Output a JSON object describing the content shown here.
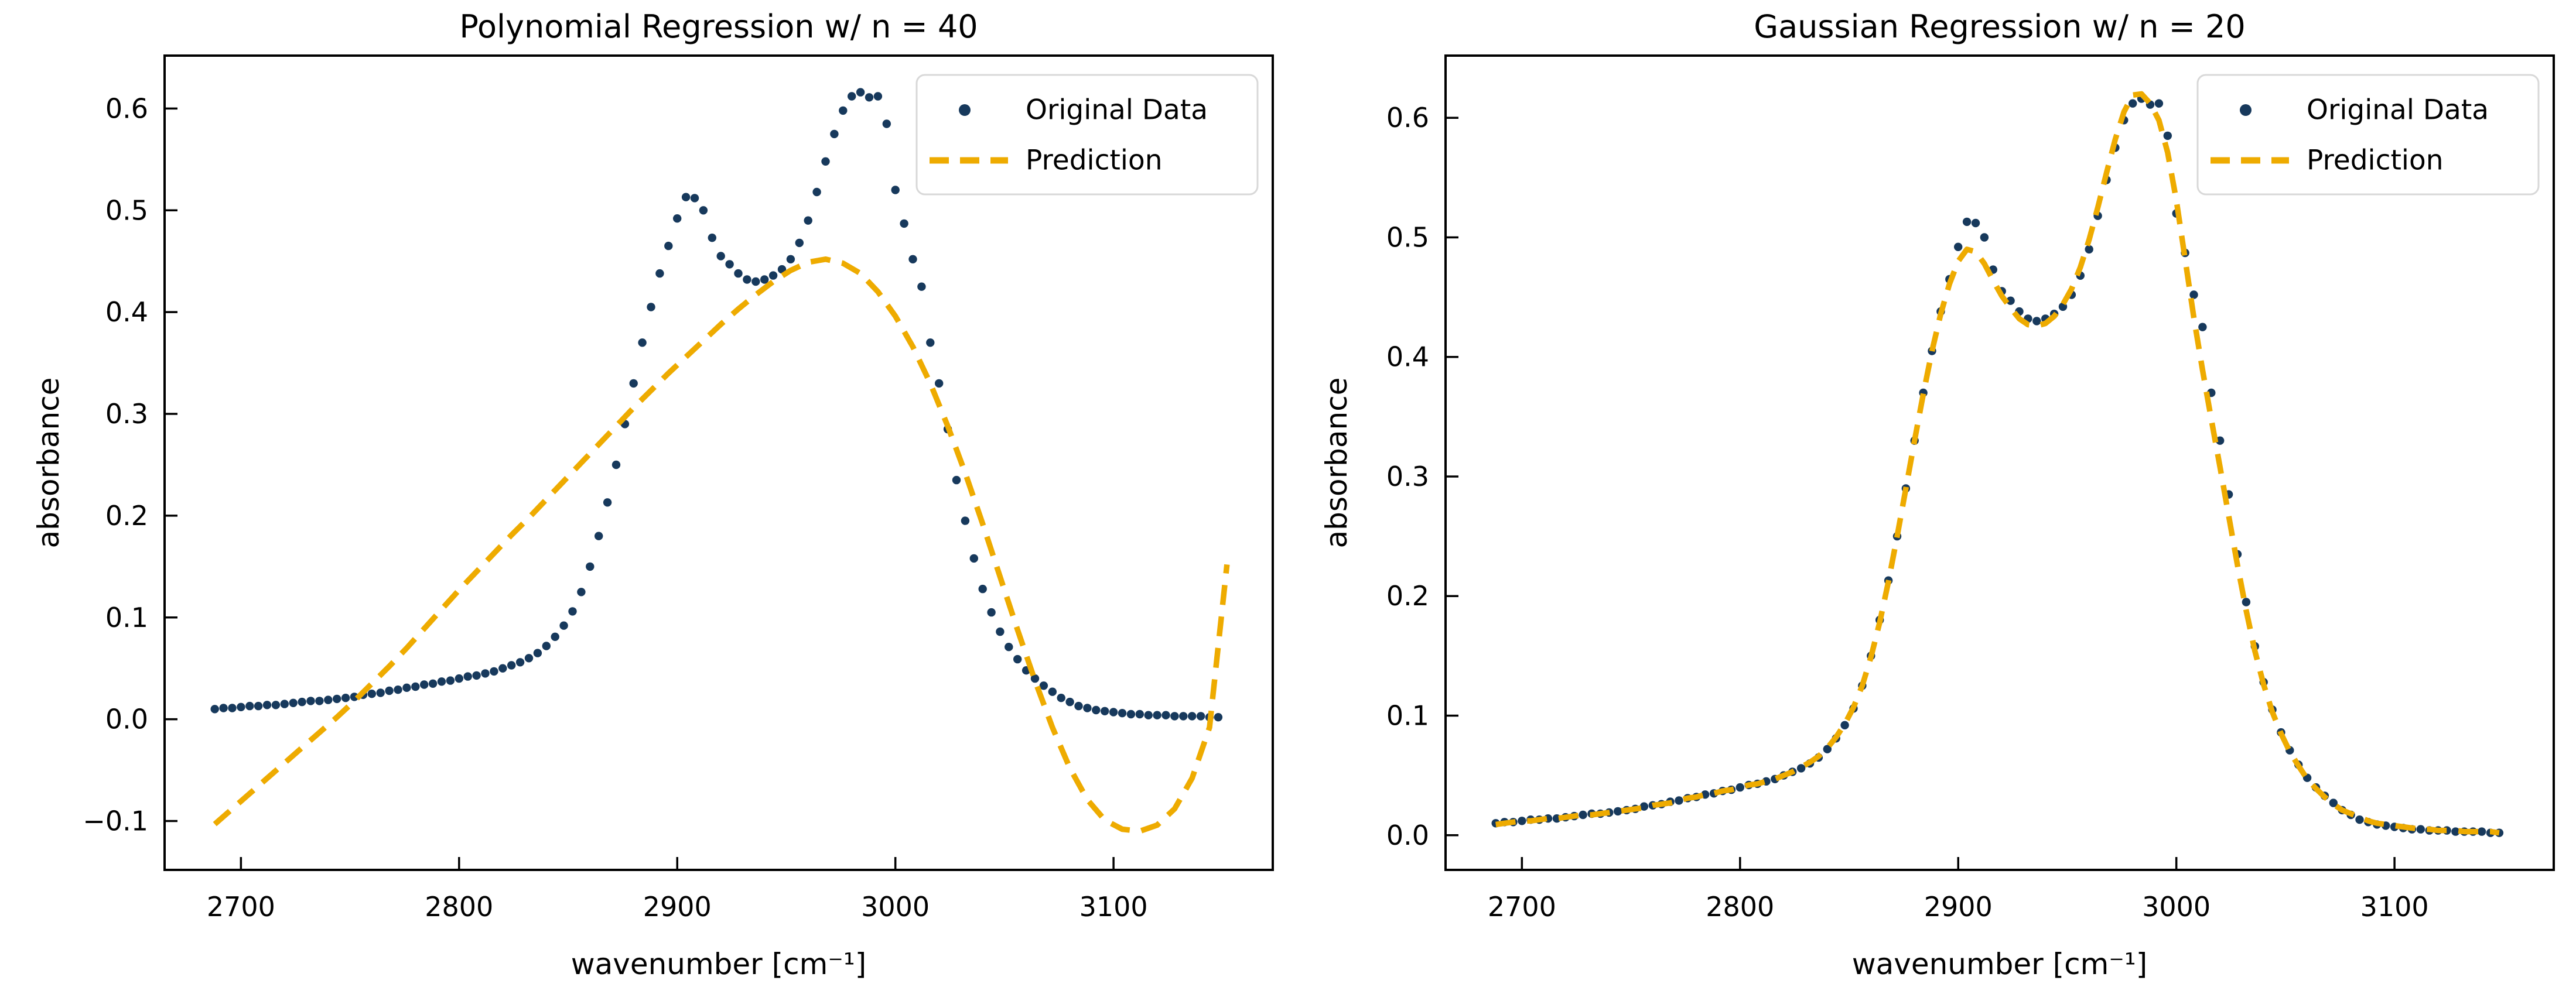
{
  "figure": {
    "background": "#ffffff"
  },
  "colors": {
    "data_points": "#17395c",
    "prediction_line": "#eeab00",
    "axis": "#000000",
    "legend_border": "#d8d8d8",
    "legend_background": "#ffffff"
  },
  "legend": {
    "items": [
      {
        "label": "Original Data",
        "marker": "dot"
      },
      {
        "label": "Prediction",
        "marker": "dashed-line"
      }
    ]
  },
  "chart_data": {
    "type": "scatter",
    "x_axis": {
      "label": "wavenumber [cm⁻¹]",
      "ticks": [
        "2700",
        "2800",
        "2900",
        "3000",
        "3100"
      ],
      "tick_values": [
        2700,
        2800,
        2900,
        3000,
        3100
      ]
    },
    "shared_series": {
      "name": "Original Data",
      "x_grid": {
        "start": 2688,
        "step": 4,
        "count": 116
      },
      "absorbance": [
        0.01,
        0.011,
        0.011,
        0.012,
        0.013,
        0.013,
        0.014,
        0.014,
        0.015,
        0.016,
        0.017,
        0.018,
        0.018,
        0.019,
        0.02,
        0.021,
        0.022,
        0.024,
        0.025,
        0.026,
        0.028,
        0.029,
        0.031,
        0.032,
        0.034,
        0.035,
        0.037,
        0.038,
        0.04,
        0.042,
        0.043,
        0.045,
        0.047,
        0.05,
        0.053,
        0.056,
        0.06,
        0.065,
        0.072,
        0.081,
        0.092,
        0.106,
        0.125,
        0.15,
        0.18,
        0.213,
        0.25,
        0.29,
        0.33,
        0.37,
        0.405,
        0.438,
        0.465,
        0.492,
        0.513,
        0.512,
        0.5,
        0.473,
        0.455,
        0.447,
        0.438,
        0.432,
        0.43,
        0.432,
        0.436,
        0.442,
        0.452,
        0.468,
        0.49,
        0.518,
        0.548,
        0.575,
        0.598,
        0.612,
        0.616,
        0.611,
        0.612,
        0.585,
        0.52,
        0.487,
        0.452,
        0.425,
        0.37,
        0.33,
        0.285,
        0.235,
        0.195,
        0.158,
        0.128,
        0.105,
        0.086,
        0.071,
        0.059,
        0.048,
        0.04,
        0.033,
        0.027,
        0.021,
        0.017,
        0.013,
        0.011,
        0.009,
        0.008,
        0.007,
        0.006,
        0.005,
        0.005,
        0.004,
        0.004,
        0.004,
        0.003,
        0.003,
        0.003,
        0.003,
        0.002,
        0.002
      ]
    },
    "panels": [
      {
        "title": "Polynomial Regression w/ n = 40",
        "ylabel": "absorbance",
        "xlim": [
          2665,
          3173
        ],
        "ylim": [
          -0.148,
          0.652
        ],
        "ytick_values": [
          -0.1,
          0.0,
          0.1,
          0.2,
          0.3,
          0.4,
          0.5,
          0.6
        ],
        "ytick_labels": [
          "−0.1",
          "0.0",
          "0.1",
          "0.2",
          "0.3",
          "0.4",
          "0.5",
          "0.6"
        ],
        "prediction": {
          "name": "Prediction",
          "x_grid": {
            "start": 2688,
            "step": 8,
            "count": 59
          },
          "values": [
            -0.103,
            -0.088,
            -0.073,
            -0.058,
            -0.043,
            -0.028,
            -0.013,
            0.002,
            0.018,
            0.035,
            0.052,
            0.07,
            0.089,
            0.108,
            0.127,
            0.145,
            0.163,
            0.181,
            0.198,
            0.216,
            0.234,
            0.252,
            0.27,
            0.288,
            0.306,
            0.323,
            0.34,
            0.356,
            0.372,
            0.388,
            0.403,
            0.417,
            0.43,
            0.441,
            0.449,
            0.452,
            0.448,
            0.438,
            0.42,
            0.396,
            0.366,
            0.33,
            0.288,
            0.242,
            0.192,
            0.14,
            0.088,
            0.038,
            -0.008,
            -0.048,
            -0.079,
            -0.099,
            -0.108,
            -0.11,
            -0.104,
            -0.088,
            -0.058,
            -0.008,
            0.152
          ]
        }
      },
      {
        "title": "Gaussian Regression w/ n = 20",
        "ylabel": "absorbance",
        "xlim": [
          2665,
          3173
        ],
        "ylim": [
          -0.029,
          0.652
        ],
        "ytick_values": [
          0.0,
          0.1,
          0.2,
          0.3,
          0.4,
          0.5,
          0.6
        ],
        "ytick_labels": [
          "0.0",
          "0.1",
          "0.2",
          "0.3",
          "0.4",
          "0.5",
          "0.6"
        ],
        "prediction": {
          "name": "Prediction",
          "x_grid": {
            "start": 2688,
            "step": 4,
            "count": 116
          },
          "values": [
            0.009,
            0.01,
            0.011,
            0.012,
            0.012,
            0.013,
            0.014,
            0.014,
            0.015,
            0.016,
            0.017,
            0.017,
            0.018,
            0.019,
            0.02,
            0.021,
            0.022,
            0.023,
            0.025,
            0.026,
            0.027,
            0.029,
            0.031,
            0.032,
            0.034,
            0.035,
            0.037,
            0.038,
            0.04,
            0.042,
            0.043,
            0.045,
            0.047,
            0.05,
            0.053,
            0.057,
            0.061,
            0.066,
            0.073,
            0.082,
            0.093,
            0.107,
            0.125,
            0.149,
            0.178,
            0.212,
            0.25,
            0.29,
            0.33,
            0.369,
            0.405,
            0.436,
            0.461,
            0.48,
            0.49,
            0.488,
            0.478,
            0.464,
            0.451,
            0.441,
            0.432,
            0.427,
            0.426,
            0.428,
            0.434,
            0.444,
            0.457,
            0.475,
            0.498,
            0.525,
            0.554,
            0.582,
            0.605,
            0.619,
            0.62,
            0.612,
            0.598,
            0.571,
            0.531,
            0.482,
            0.433,
            0.389,
            0.348,
            0.308,
            0.267,
            0.226,
            0.188,
            0.154,
            0.126,
            0.103,
            0.085,
            0.07,
            0.058,
            0.047,
            0.039,
            0.032,
            0.026,
            0.021,
            0.018,
            0.015,
            0.012,
            0.01,
            0.009,
            0.008,
            0.007,
            0.006,
            0.005,
            0.005,
            0.004,
            0.004,
            0.004,
            0.003,
            0.003,
            0.003,
            0.003,
            0.002
          ]
        }
      }
    ]
  }
}
